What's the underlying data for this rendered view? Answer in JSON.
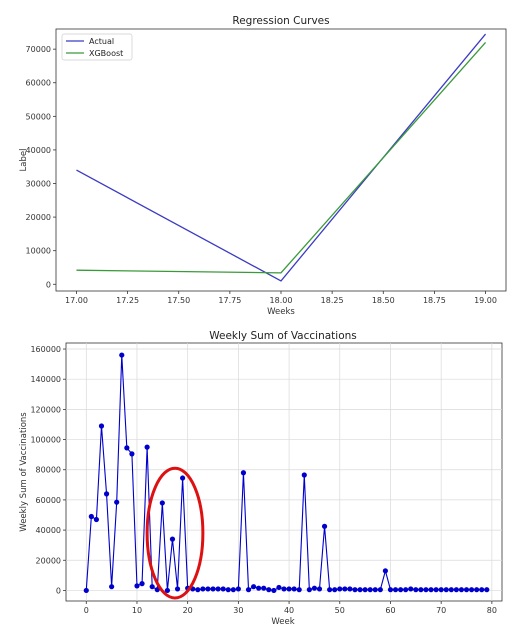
{
  "chart_data": [
    {
      "type": "line",
      "title": "Regression Curves",
      "xlabel": "Weeks",
      "ylabel": "Label",
      "x": [
        17,
        18,
        19
      ],
      "xlim": [
        16.9,
        19.1
      ],
      "ylim": [
        -2000,
        76000
      ],
      "xticks": [
        "17.00",
        "17.25",
        "17.50",
        "17.75",
        "18.00",
        "18.25",
        "18.50",
        "18.75",
        "19.00"
      ],
      "yticks": [
        "0",
        "10000",
        "20000",
        "30000",
        "40000",
        "50000",
        "60000",
        "70000"
      ],
      "grid": false,
      "legend": "top-left",
      "series": [
        {
          "name": "Actual",
          "color": "#3b3bc4",
          "values": [
            34000,
            1000,
            74500
          ]
        },
        {
          "name": "XGBoost",
          "color": "#3a9a3a",
          "values": [
            4200,
            3400,
            72000
          ]
        }
      ]
    },
    {
      "type": "line",
      "title": "Weekly Sum of Vaccinations",
      "xlabel": "Week",
      "ylabel": "Weekly Sum of Vaccinations",
      "xlim": [
        -4,
        82
      ],
      "ylim": [
        -7000,
        164000
      ],
      "xticks": [
        "0",
        "10",
        "20",
        "30",
        "40",
        "50",
        "60",
        "70",
        "80"
      ],
      "yticks": [
        "0",
        "20000",
        "40000",
        "60000",
        "80000",
        "100000",
        "120000",
        "140000",
        "160000"
      ],
      "grid": true,
      "color": "#0000cc",
      "annotation": {
        "shape": "ellipse",
        "color": "#dd1111",
        "center_x": 17.5,
        "center_y": 38000,
        "rx": 5.5,
        "ry": 43000
      },
      "x": [
        0,
        1,
        2,
        3,
        4,
        5,
        6,
        7,
        8,
        9,
        10,
        11,
        12,
        13,
        14,
        15,
        16,
        17,
        18,
        19,
        20,
        21,
        22,
        23,
        24,
        25,
        26,
        27,
        28,
        29,
        30,
        31,
        32,
        33,
        34,
        35,
        36,
        37,
        38,
        39,
        40,
        41,
        42,
        43,
        44,
        45,
        46,
        47,
        48,
        49,
        50,
        51,
        52,
        53,
        54,
        55,
        56,
        57,
        58,
        59,
        60,
        61,
        62,
        63,
        64,
        65,
        66,
        67,
        68,
        69,
        70,
        71,
        72,
        73,
        74,
        75,
        76,
        77,
        78,
        79
      ],
      "values": [
        0,
        49000,
        47000,
        109000,
        64000,
        2500,
        58500,
        156000,
        94500,
        90500,
        3000,
        4500,
        95000,
        2500,
        500,
        58000,
        0,
        34000,
        1000,
        74500,
        1500,
        1000,
        500,
        1000,
        1000,
        1000,
        1000,
        1000,
        500,
        500,
        1000,
        78000,
        500,
        2500,
        1500,
        1500,
        500,
        0,
        2000,
        1000,
        1000,
        1000,
        500,
        76500,
        500,
        1500,
        1000,
        42500,
        500,
        500,
        1000,
        1000,
        1000,
        500,
        500,
        500,
        500,
        500,
        500,
        13000,
        500,
        500,
        500,
        500,
        1000,
        500,
        500,
        500,
        500,
        500,
        500,
        500,
        500,
        500,
        500,
        500,
        500,
        500,
        500,
        500
      ]
    }
  ]
}
